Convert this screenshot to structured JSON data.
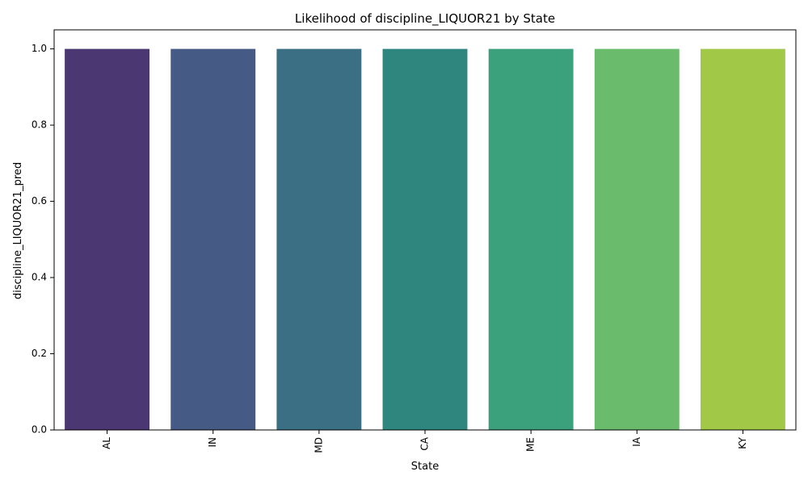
{
  "chart_data": {
    "type": "bar",
    "title": "Likelihood of discipline_LIQUOR21 by State",
    "xlabel": "State",
    "ylabel": "discipline_LIQUOR21_pred",
    "categories": [
      "AL",
      "IN",
      "MD",
      "CA",
      "ME",
      "IA",
      "KY"
    ],
    "values": [
      1.0,
      1.0,
      1.0,
      1.0,
      1.0,
      1.0,
      1.0
    ],
    "colors": [
      "#4b3771",
      "#455a85",
      "#3b6f83",
      "#2e867e",
      "#3aa17c",
      "#6abc6c",
      "#a2c848"
    ],
    "ylim": [
      0,
      1.05
    ],
    "yticks": [
      "0.0",
      "0.2",
      "0.4",
      "0.6",
      "0.8",
      "1.0"
    ],
    "grid": false,
    "legend": "none"
  }
}
